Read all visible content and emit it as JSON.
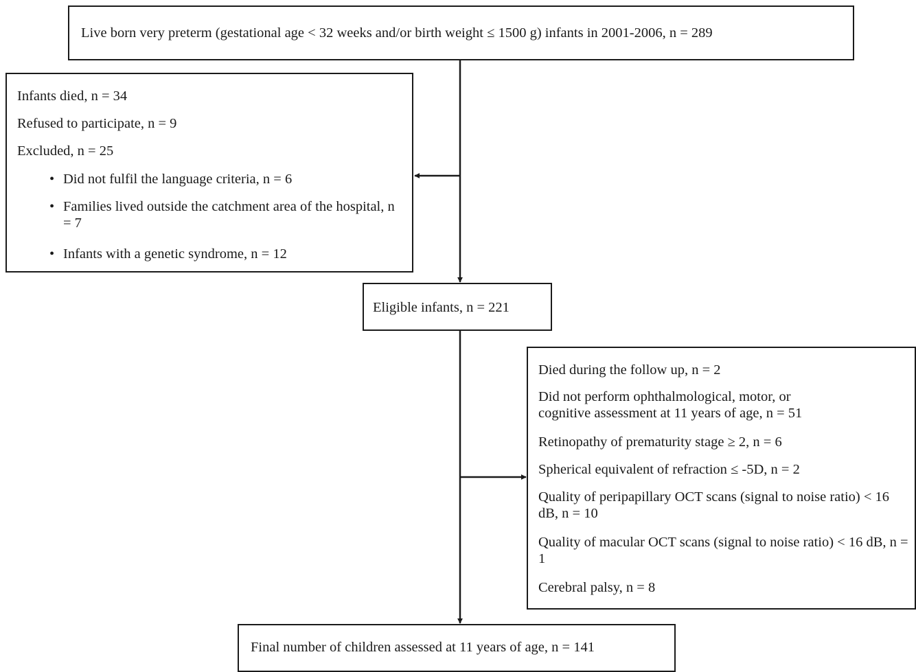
{
  "top_box": {
    "text": "Live born very preterm (gestational age < 32 weeks and/or birth weight ≤ 1500 g) infants in 2001-2006, n = 289"
  },
  "exclusion_box_1": {
    "lines": [
      "Infants died, n = 34",
      "Refused to participate, n = 9",
      "Excluded, n = 25"
    ],
    "bullets": [
      "Did not fulfil the language criteria, n = 6",
      "Families lived outside the catchment area of the hospital, n = 7",
      "Infants with a genetic syndrome, n = 12"
    ]
  },
  "eligible_box": {
    "text": "Eligible infants, n = 221"
  },
  "exclusion_box_2": {
    "items": [
      "Died during the follow up, n = 2",
      "Did not perform ophthalmological, motor, or cognitive assessment at 11 years of age, n = 51",
      "Retinopathy of prematurity stage ≥ 2, n = 6",
      "Spherical equivalent of refraction ≤ -5D, n = 2",
      "Quality of peripapillary OCT scans (signal to noise ratio) < 16 dB, n = 10",
      "Quality of macular OCT scans (signal to noise ratio) < 16 dB, n = 1",
      "Cerebral palsy, n = 8"
    ]
  },
  "final_box": {
    "text": "Final number of children assessed at 11 years of age, n = 141"
  }
}
